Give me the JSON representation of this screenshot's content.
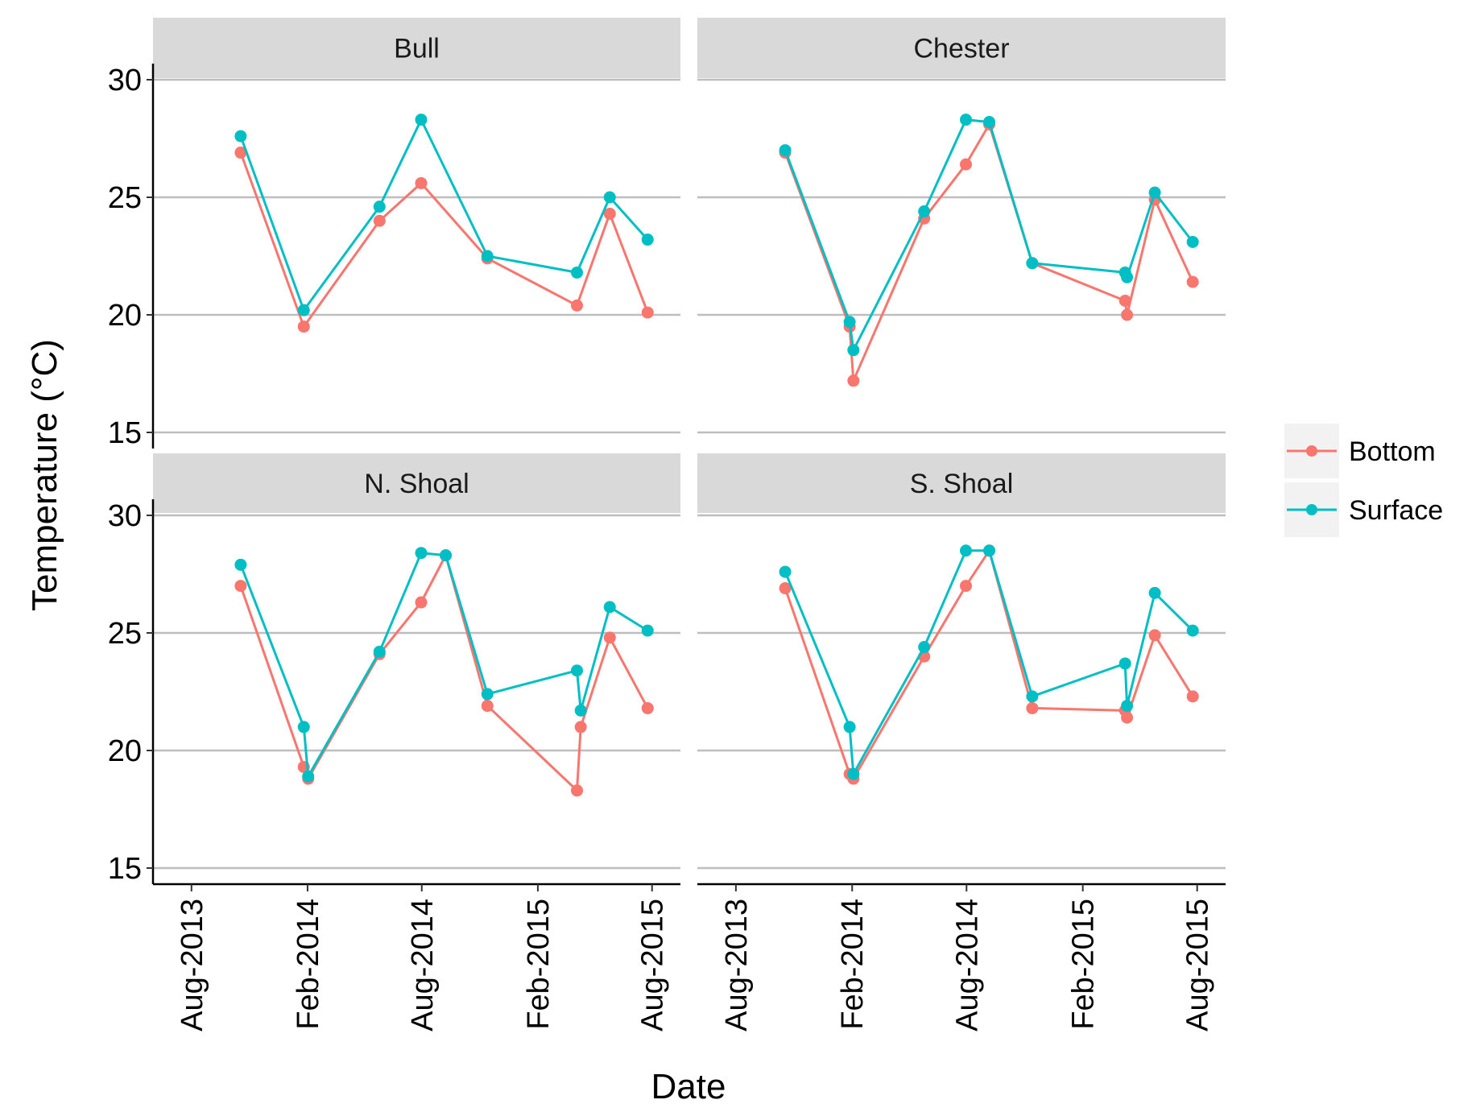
{
  "chart_data": {
    "type": "line",
    "xlabel": "Date",
    "ylabel": "Temperature (°C)",
    "ylim": [
      15,
      30
    ],
    "yticks": [
      15,
      20,
      25,
      30
    ],
    "xlim": [
      "2013-06-01",
      "2015-09-15"
    ],
    "xticks": [
      {
        "date": "2013-08-01",
        "label": "Aug-2013"
      },
      {
        "date": "2014-02-01",
        "label": "Feb-2014"
      },
      {
        "date": "2014-08-01",
        "label": "Aug-2014"
      },
      {
        "date": "2015-02-01",
        "label": "Feb-2015"
      },
      {
        "date": "2015-08-01",
        "label": "Aug-2015"
      }
    ],
    "grid": "horizontal major",
    "legend": {
      "placement": "right",
      "items": [
        "Bottom",
        "Surface"
      ]
    },
    "colors": {
      "Bottom": "#f8766d",
      "Surface": "#00bfc4",
      "strip": "#d9d9d9",
      "grid": "#bebebe"
    },
    "panels": [
      {
        "title": "Bull",
        "series": [
          {
            "name": "Bottom",
            "points": [
              {
                "x": "2013-10-18",
                "y": 26.9
              },
              {
                "x": "2014-01-26",
                "y": 19.5
              },
              {
                "x": "2014-05-26",
                "y": 24.0
              },
              {
                "x": "2014-07-31",
                "y": 25.6
              },
              {
                "x": "2014-11-13",
                "y": 22.4
              },
              {
                "x": "2015-04-04",
                "y": 20.4
              },
              {
                "x": "2015-05-26",
                "y": 24.3
              },
              {
                "x": "2015-07-25",
                "y": 20.1
              }
            ]
          },
          {
            "name": "Surface",
            "points": [
              {
                "x": "2013-10-18",
                "y": 27.6
              },
              {
                "x": "2014-01-26",
                "y": 20.2
              },
              {
                "x": "2014-05-26",
                "y": 24.6
              },
              {
                "x": "2014-07-31",
                "y": 28.3
              },
              {
                "x": "2014-11-13",
                "y": 22.5
              },
              {
                "x": "2015-04-04",
                "y": 21.8
              },
              {
                "x": "2015-05-26",
                "y": 25.0
              },
              {
                "x": "2015-07-25",
                "y": 23.2
              }
            ]
          }
        ]
      },
      {
        "title": "Chester",
        "series": [
          {
            "name": "Bottom",
            "points": [
              {
                "x": "2013-10-18",
                "y": 26.9
              },
              {
                "x": "2014-01-28",
                "y": 19.5
              },
              {
                "x": "2014-02-03",
                "y": 17.2
              },
              {
                "x": "2014-05-26",
                "y": 24.1
              },
              {
                "x": "2014-07-31",
                "y": 26.4
              },
              {
                "x": "2014-09-06",
                "y": 28.1
              },
              {
                "x": "2014-11-13",
                "y": 22.2
              },
              {
                "x": "2015-04-09",
                "y": 20.6
              },
              {
                "x": "2015-04-12",
                "y": 20.0
              },
              {
                "x": "2015-05-26",
                "y": 24.9
              },
              {
                "x": "2015-07-25",
                "y": 21.4
              }
            ]
          },
          {
            "name": "Surface",
            "points": [
              {
                "x": "2013-10-18",
                "y": 27.0
              },
              {
                "x": "2014-01-28",
                "y": 19.7
              },
              {
                "x": "2014-02-03",
                "y": 18.5
              },
              {
                "x": "2014-05-26",
                "y": 24.4
              },
              {
                "x": "2014-07-31",
                "y": 28.3
              },
              {
                "x": "2014-09-06",
                "y": 28.2
              },
              {
                "x": "2014-11-13",
                "y": 22.2
              },
              {
                "x": "2015-04-09",
                "y": 21.8
              },
              {
                "x": "2015-04-12",
                "y": 21.6
              },
              {
                "x": "2015-05-26",
                "y": 25.2
              },
              {
                "x": "2015-07-25",
                "y": 23.1
              }
            ]
          }
        ]
      },
      {
        "title": "N. Shoal",
        "series": [
          {
            "name": "Bottom",
            "points": [
              {
                "x": "2013-10-18",
                "y": 27.0
              },
              {
                "x": "2014-01-26",
                "y": 19.3
              },
              {
                "x": "2014-02-02",
                "y": 18.8
              },
              {
                "x": "2014-05-26",
                "y": 24.1
              },
              {
                "x": "2014-07-31",
                "y": 26.3
              },
              {
                "x": "2014-09-08",
                "y": 28.3
              },
              {
                "x": "2014-11-13",
                "y": 21.9
              },
              {
                "x": "2015-04-04",
                "y": 18.3
              },
              {
                "x": "2015-04-10",
                "y": 21.0
              },
              {
                "x": "2015-05-26",
                "y": 24.8
              },
              {
                "x": "2015-07-25",
                "y": 21.8
              }
            ]
          },
          {
            "name": "Surface",
            "points": [
              {
                "x": "2013-10-18",
                "y": 27.9
              },
              {
                "x": "2014-01-26",
                "y": 21.0
              },
              {
                "x": "2014-02-02",
                "y": 18.9
              },
              {
                "x": "2014-05-26",
                "y": 24.2
              },
              {
                "x": "2014-07-31",
                "y": 28.4
              },
              {
                "x": "2014-09-08",
                "y": 28.3
              },
              {
                "x": "2014-11-13",
                "y": 22.4
              },
              {
                "x": "2015-04-04",
                "y": 23.4
              },
              {
                "x": "2015-04-10",
                "y": 21.7
              },
              {
                "x": "2015-05-26",
                "y": 26.1
              },
              {
                "x": "2015-07-25",
                "y": 25.1
              }
            ]
          }
        ]
      },
      {
        "title": "S. Shoal",
        "series": [
          {
            "name": "Bottom",
            "points": [
              {
                "x": "2013-10-18",
                "y": 26.9
              },
              {
                "x": "2014-01-28",
                "y": 19.0
              },
              {
                "x": "2014-02-03",
                "y": 18.8
              },
              {
                "x": "2014-05-26",
                "y": 24.0
              },
              {
                "x": "2014-07-31",
                "y": 27.0
              },
              {
                "x": "2014-09-06",
                "y": 28.5
              },
              {
                "x": "2014-11-13",
                "y": 21.8
              },
              {
                "x": "2015-04-09",
                "y": 21.7
              },
              {
                "x": "2015-04-12",
                "y": 21.4
              },
              {
                "x": "2015-05-26",
                "y": 24.9
              },
              {
                "x": "2015-07-25",
                "y": 22.3
              }
            ]
          },
          {
            "name": "Surface",
            "points": [
              {
                "x": "2013-10-18",
                "y": 27.6
              },
              {
                "x": "2014-01-28",
                "y": 21.0
              },
              {
                "x": "2014-02-03",
                "y": 19.0
              },
              {
                "x": "2014-05-26",
                "y": 24.4
              },
              {
                "x": "2014-07-31",
                "y": 28.5
              },
              {
                "x": "2014-09-06",
                "y": 28.5
              },
              {
                "x": "2014-11-13",
                "y": 22.3
              },
              {
                "x": "2015-04-09",
                "y": 23.7
              },
              {
                "x": "2015-04-12",
                "y": 21.9
              },
              {
                "x": "2015-05-26",
                "y": 26.7
              },
              {
                "x": "2015-07-25",
                "y": 25.1
              }
            ]
          }
        ]
      }
    ]
  }
}
